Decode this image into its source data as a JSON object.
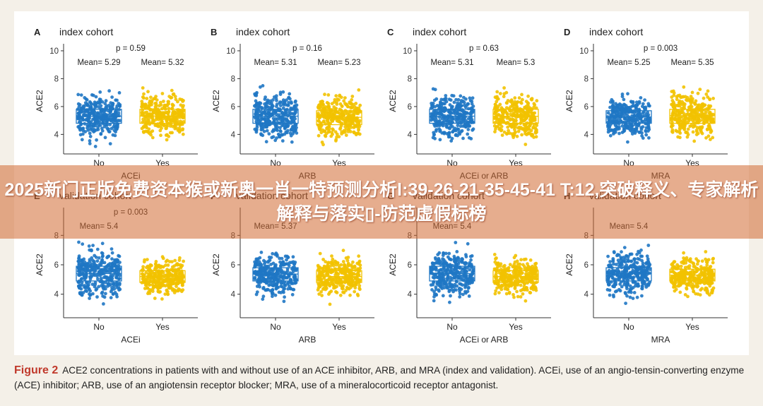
{
  "colors": {
    "no": "#1f77c4",
    "yes": "#f2c200",
    "axis": "#333333"
  },
  "chart_data": [
    {
      "type": "scatter",
      "panel": "A",
      "cohort": "index cohort",
      "xlabel": "ACEi",
      "ylabel": "ACE2",
      "categories": [
        "No",
        "Yes"
      ],
      "p_text": "p = 0.59",
      "mean_texts": [
        "Mean= 5.29",
        "Mean= 5.32"
      ],
      "means": [
        5.29,
        5.32
      ],
      "iqr": [
        [
          4.8,
          5.8
        ],
        [
          4.8,
          5.8
        ]
      ],
      "spread": [
        [
          3.0,
          7.6
        ],
        [
          3.0,
          7.8
        ]
      ],
      "ylim": [
        2.6,
        10.2
      ],
      "yticks": [
        4,
        6,
        8,
        10
      ]
    },
    {
      "type": "scatter",
      "panel": "B",
      "cohort": "index cohort",
      "xlabel": "ARB",
      "ylabel": "ACE2",
      "categories": [
        "No",
        "Yes"
      ],
      "p_text": "p = 0.16",
      "mean_texts": [
        "Mean= 5.31",
        "Mean= 5.23"
      ],
      "means": [
        5.31,
        5.23
      ],
      "iqr": [
        [
          4.8,
          5.8
        ],
        [
          4.7,
          5.7
        ]
      ],
      "spread": [
        [
          3.0,
          7.8
        ],
        [
          3.2,
          7.2
        ]
      ],
      "ylim": [
        2.6,
        10.2
      ],
      "yticks": [
        4,
        6,
        8,
        10
      ]
    },
    {
      "type": "scatter",
      "panel": "C",
      "cohort": "index cohort",
      "xlabel": "ACEi or ARB",
      "ylabel": "ACE2",
      "categories": [
        "No",
        "Yes"
      ],
      "p_text": "p = 0.63",
      "mean_texts": [
        "Mean= 5.31",
        "Mean= 5.3"
      ],
      "means": [
        5.31,
        5.3
      ],
      "iqr": [
        [
          4.8,
          5.8
        ],
        [
          4.8,
          5.8
        ]
      ],
      "spread": [
        [
          3.0,
          7.4
        ],
        [
          3.0,
          7.8
        ]
      ],
      "ylim": [
        2.6,
        10.2
      ],
      "yticks": [
        4,
        6,
        8,
        10
      ]
    },
    {
      "type": "scatter",
      "panel": "D",
      "cohort": "index cohort",
      "xlabel": "MRA",
      "ylabel": "ACE2",
      "categories": [
        "No",
        "Yes"
      ],
      "p_text": "p = 0.003",
      "mean_texts": [
        "Mean= 5.25",
        "Mean= 5.35"
      ],
      "means": [
        5.25,
        5.35
      ],
      "iqr": [
        [
          4.8,
          5.7
        ],
        [
          4.8,
          5.8
        ]
      ],
      "spread": [
        [
          3.0,
          7.5
        ],
        [
          3.0,
          7.8
        ]
      ],
      "ylim": [
        2.6,
        10.2
      ],
      "yticks": [
        4,
        6,
        8,
        10
      ]
    },
    {
      "type": "scatter",
      "panel": "E",
      "cohort": "validation cohort",
      "xlabel": "ACEi",
      "ylabel": "ACE2",
      "categories": [
        "No",
        "Yes"
      ],
      "p_text": "p = 0.003",
      "mean_texts": [
        "Mean= 5.4",
        ""
      ],
      "means": [
        5.4,
        5.2
      ],
      "iqr": [
        [
          4.9,
          5.9
        ],
        [
          4.8,
          5.6
        ]
      ],
      "spread": [
        [
          2.8,
          7.8
        ],
        [
          2.8,
          8.0
        ]
      ],
      "ylim": [
        2.4,
        9.6
      ],
      "yticks": [
        4,
        6,
        8
      ]
    },
    {
      "type": "scatter",
      "panel": "F",
      "cohort": "validation cohort",
      "xlabel": "ARB",
      "ylabel": "ACE2",
      "categories": [
        "No",
        "Yes"
      ],
      "p_text": "",
      "mean_texts": [
        "Mean= 5.37",
        ""
      ],
      "means": [
        5.37,
        5.2
      ],
      "iqr": [
        [
          4.9,
          5.8
        ],
        [
          4.8,
          5.6
        ]
      ],
      "spread": [
        [
          2.8,
          8.0
        ],
        [
          2.8,
          7.0
        ]
      ],
      "ylim": [
        2.4,
        9.6
      ],
      "yticks": [
        4,
        6,
        8
      ]
    },
    {
      "type": "scatter",
      "panel": "G",
      "cohort": "validation cohort",
      "xlabel": "ACEi or ARB",
      "ylabel": "ACE2",
      "categories": [
        "No",
        "Yes"
      ],
      "p_text": "",
      "mean_texts": [
        "Mean= 5.4",
        ""
      ],
      "means": [
        5.4,
        5.2
      ],
      "iqr": [
        [
          4.9,
          5.9
        ],
        [
          4.8,
          5.6
        ]
      ],
      "spread": [
        [
          2.8,
          7.8
        ],
        [
          2.8,
          8.0
        ]
      ],
      "ylim": [
        2.4,
        9.6
      ],
      "yticks": [
        4,
        6,
        8
      ]
    },
    {
      "type": "scatter",
      "panel": "H",
      "cohort": "validation cohort",
      "xlabel": "MRA",
      "ylabel": "ACE2",
      "categories": [
        "No",
        "Yes"
      ],
      "p_text": "",
      "mean_texts": [
        "Mean= 5.4",
        ""
      ],
      "means": [
        5.4,
        5.3
      ],
      "iqr": [
        [
          4.9,
          5.8
        ],
        [
          4.9,
          5.7
        ]
      ],
      "spread": [
        [
          2.8,
          8.2
        ],
        [
          2.8,
          7.6
        ]
      ],
      "ylim": [
        2.4,
        9.6
      ],
      "yticks": [
        4,
        6,
        8
      ]
    }
  ],
  "caption": {
    "label": "Figure 2",
    "text": "ACE2 concentrations in patients with and without use of an ACE inhibitor, ARB, and MRA (index and validation). ACEi, use of an angio-tensin-converting enzyme (ACE) inhibitor; ARB, use of an angiotensin receptor blocker; MRA, use of a mineralocorticoid receptor antagonist."
  },
  "banner": {
    "text": "2025新门正版免费资本猴或新奥一肖一特预测分析l:39-26-21-35-45-41 T:12,突破释义、专家解析解释与落实▯-防范虚假标榜"
  }
}
